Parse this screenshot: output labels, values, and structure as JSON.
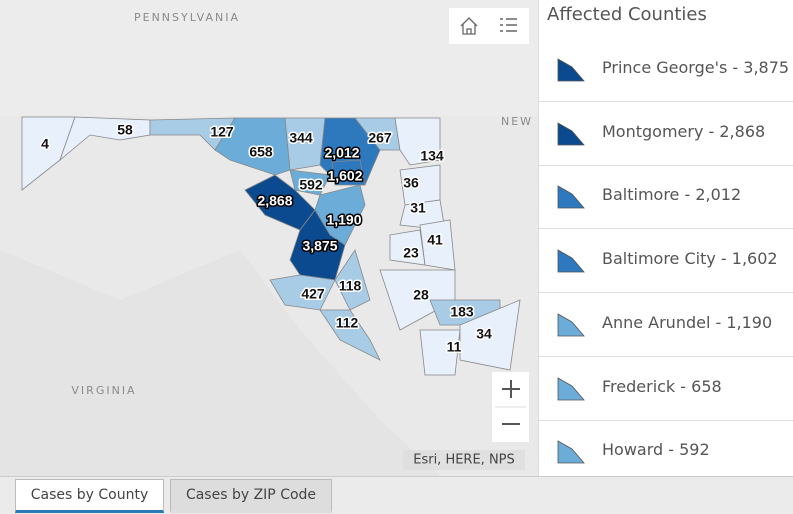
{
  "map": {
    "place_labels": [
      "PENNSYLVANIA",
      "NEW",
      "VIRGINIA"
    ],
    "county_labels": [
      "4",
      "58",
      "127",
      "658",
      "344",
      "2,012",
      "267",
      "134",
      "592",
      "1,602",
      "2,868",
      "36",
      "31",
      "1,190",
      "41",
      "3,875",
      "23",
      "427",
      "118",
      "28",
      "183",
      "112",
      "34",
      "11"
    ],
    "attribution": "Esri, HERE, NPS"
  },
  "legend": {
    "title": "Affected Counties",
    "items": [
      "Prince George's - 3,875",
      "Montgomery - 2,868",
      "Baltimore - 2,012",
      "Baltimore City - 1,602",
      "Anne Arundel - 1,190",
      "Frederick - 658",
      "Howard - 592"
    ]
  },
  "tabs": [
    "Cases by County",
    "Cases by ZIP Code"
  ]
}
